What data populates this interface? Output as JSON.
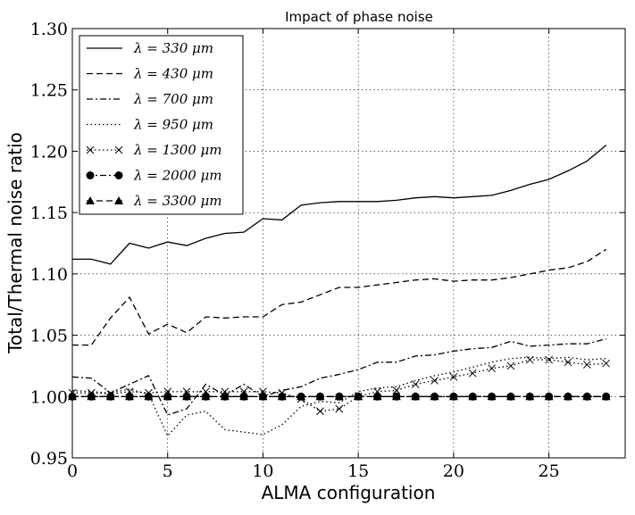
{
  "chart_data": {
    "type": "line",
    "title": "Impact of phase noise",
    "xlabel": "ALMA configuration",
    "ylabel": "Total/Thermal noise ratio",
    "xlim": [
      0,
      29
    ],
    "ylim": [
      0.95,
      1.3
    ],
    "xticks": [
      0,
      5,
      10,
      15,
      20,
      25
    ],
    "yticks": [
      0.95,
      1.0,
      1.05,
      1.1,
      1.15,
      1.2,
      1.25,
      1.3
    ],
    "grid": true,
    "legend_position": "top-left",
    "series": [
      {
        "name": "λ = 330 μm",
        "style": "solid",
        "marker": "none",
        "x": [
          0,
          1,
          2,
          3,
          4,
          5,
          6,
          7,
          8,
          9,
          10,
          11,
          12,
          13,
          14,
          15,
          16,
          17,
          18,
          19,
          20,
          21,
          22,
          23,
          24,
          25,
          26,
          27,
          28
        ],
        "y": [
          1.112,
          1.112,
          1.108,
          1.125,
          1.121,
          1.126,
          1.123,
          1.129,
          1.133,
          1.134,
          1.145,
          1.144,
          1.156,
          1.158,
          1.159,
          1.159,
          1.159,
          1.16,
          1.162,
          1.163,
          1.162,
          1.163,
          1.164,
          1.168,
          1.173,
          1.177,
          1.184,
          1.192,
          1.205
        ]
      },
      {
        "name": "λ = 430 μm",
        "style": "dashed",
        "marker": "none",
        "x": [
          0,
          1,
          2,
          3,
          4,
          5,
          6,
          7,
          8,
          9,
          10,
          11,
          12,
          13,
          14,
          15,
          16,
          17,
          18,
          19,
          20,
          21,
          22,
          23,
          24,
          25,
          26,
          27,
          28
        ],
        "y": [
          1.042,
          1.042,
          1.064,
          1.081,
          1.051,
          1.059,
          1.052,
          1.065,
          1.064,
          1.065,
          1.065,
          1.075,
          1.077,
          1.083,
          1.089,
          1.089,
          1.091,
          1.093,
          1.095,
          1.096,
          1.094,
          1.095,
          1.095,
          1.097,
          1.1,
          1.103,
          1.105,
          1.11,
          1.12
        ]
      },
      {
        "name": "λ = 700 μm",
        "style": "dashdot",
        "marker": "none",
        "x": [
          0,
          1,
          2,
          3,
          4,
          5,
          6,
          7,
          8,
          9,
          10,
          11,
          12,
          13,
          14,
          15,
          16,
          17,
          18,
          19,
          20,
          21,
          22,
          23,
          24,
          25,
          26,
          27,
          28
        ],
        "y": [
          1.016,
          1.015,
          1.003,
          1.01,
          1.017,
          0.985,
          0.99,
          1.01,
          1.001,
          1.01,
          1.0,
          1.005,
          1.008,
          1.015,
          1.018,
          1.022,
          1.028,
          1.028,
          1.033,
          1.034,
          1.037,
          1.039,
          1.04,
          1.045,
          1.041,
          1.042,
          1.043,
          1.043,
          1.047
        ]
      },
      {
        "name": "λ = 950 μm",
        "style": "dotted",
        "marker": "none",
        "x": [
          0,
          1,
          2,
          3,
          4,
          5,
          6,
          7,
          8,
          9,
          10,
          11,
          12,
          13,
          14,
          15,
          16,
          17,
          18,
          19,
          20,
          21,
          22,
          23,
          24,
          25,
          26,
          27,
          28
        ],
        "y": [
          1.005,
          1.004,
          1.003,
          1.006,
          1.002,
          0.968,
          0.985,
          0.988,
          0.973,
          0.971,
          0.969,
          0.977,
          0.992,
          0.996,
          0.995,
          1.004,
          1.007,
          1.008,
          1.013,
          1.017,
          1.02,
          1.024,
          1.028,
          1.031,
          1.032,
          1.031,
          1.032,
          1.03,
          1.031
        ]
      },
      {
        "name": "λ = 1300 μm",
        "style": "dotted",
        "marker": "x",
        "x": [
          0,
          1,
          2,
          3,
          4,
          5,
          6,
          7,
          8,
          9,
          10,
          11,
          12,
          13,
          14,
          15,
          16,
          17,
          18,
          19,
          20,
          21,
          22,
          23,
          24,
          25,
          26,
          27,
          28
        ],
        "y": [
          1.003,
          1.003,
          1.002,
          1.004,
          1.003,
          1.004,
          1.004,
          1.004,
          1.004,
          1.004,
          1.004,
          1.003,
          0.998,
          0.988,
          0.99,
          1.0,
          1.004,
          1.005,
          1.01,
          1.013,
          1.016,
          1.019,
          1.023,
          1.025,
          1.03,
          1.03,
          1.028,
          1.026,
          1.027
        ]
      },
      {
        "name": "λ = 2000 μm",
        "style": "dashdot",
        "marker": "circle",
        "x": [
          0,
          1,
          2,
          3,
          4,
          5,
          6,
          7,
          8,
          9,
          10,
          11,
          12,
          13,
          14,
          15,
          16,
          17,
          18,
          19,
          20,
          21,
          22,
          23,
          24,
          25,
          26,
          27,
          28
        ],
        "y": [
          1.0,
          1.0,
          1.0,
          1.0,
          1.0,
          1.0,
          1.0,
          1.0,
          1.0,
          1.0,
          1.0,
          1.0,
          1.0,
          1.0,
          1.0,
          1.0,
          1.0,
          1.0,
          1.0,
          1.0,
          1.0,
          1.0,
          1.0,
          1.0,
          1.0,
          1.0,
          1.0,
          1.0,
          1.0
        ]
      },
      {
        "name": "λ = 3300 μm",
        "style": "dashed",
        "marker": "triangle",
        "x": [
          0,
          1,
          2,
          3,
          4,
          5,
          6,
          7,
          8,
          9,
          10,
          11,
          12,
          13,
          14,
          15,
          16,
          17,
          18,
          19,
          20,
          21,
          22,
          23,
          24,
          25,
          26,
          27,
          28
        ],
        "y": [
          1.0,
          1.0,
          1.0,
          1.0,
          1.0,
          1.0,
          1.0,
          1.0,
          1.0,
          1.0,
          1.0,
          1.0,
          1.0,
          1.0,
          1.0,
          1.0,
          1.0,
          1.0,
          1.0,
          1.0,
          1.0,
          1.0,
          1.0,
          1.0,
          1.0,
          1.0,
          1.0,
          1.0,
          1.0
        ]
      }
    ]
  }
}
